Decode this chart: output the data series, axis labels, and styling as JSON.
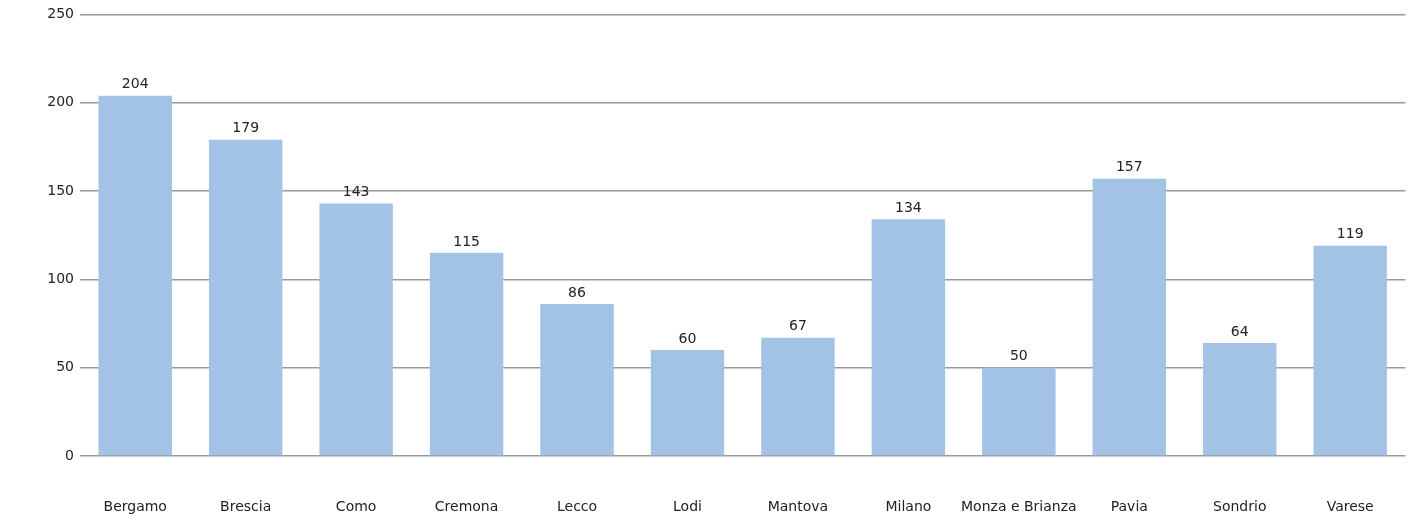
{
  "chart_data": {
    "type": "bar",
    "categories": [
      "Bergamo",
      "Brescia",
      "Como",
      "Cremona",
      "Lecco",
      "Lodi",
      "Mantova",
      "Milano",
      "Monza e Brianza",
      "Pavia",
      "Sondrio",
      "Varese"
    ],
    "values": [
      204,
      179,
      143,
      115,
      86,
      60,
      67,
      134,
      50,
      157,
      64,
      119
    ],
    "color": "#a3c3e6",
    "ylim": [
      0,
      250
    ],
    "yticks": [
      0,
      50,
      100,
      150,
      200,
      250
    ],
    "grid": "y",
    "data_labels": true
  }
}
